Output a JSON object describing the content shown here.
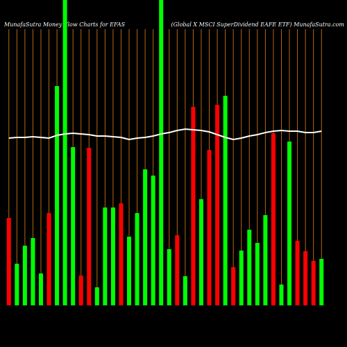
{
  "chart_data": {
    "type": "bar",
    "title": "MunafaSutra  Money Flow  Charts for EFAS",
    "subtitle": "(Global X  MSCI SuperDividend EAFE ETF) MunafaSutra.com",
    "categories": [
      null,
      null,
      null,
      null,
      null,
      null,
      null,
      null,
      null,
      null,
      null,
      null,
      null,
      null,
      null,
      null,
      null,
      null,
      null,
      null,
      null,
      null,
      null,
      null,
      null,
      null,
      null,
      null,
      null,
      null,
      null,
      null,
      null,
      null,
      null,
      null,
      null,
      null,
      null,
      null
    ],
    "values": [
      126,
      60,
      86,
      97,
      46,
      133,
      316,
      440,
      228,
      43,
      227,
      26,
      141,
      141,
      147,
      99,
      133,
      196,
      187,
      440,
      81,
      101,
      42,
      286,
      153,
      224,
      289,
      302,
      55,
      79,
      109,
      90,
      130,
      248,
      30,
      236,
      93,
      78,
      64,
      67
    ],
    "colors": [
      "#ff0000",
      "#00ff00",
      "#00ff00",
      "#00ff00",
      "#00ff00",
      "#ff0000",
      "#00ff00",
      "#00ff00",
      "#00ff00",
      "#ff0000",
      "#ff0000",
      "#00ff00",
      "#00ff00",
      "#00ff00",
      "#ff0000",
      "#00ff00",
      "#00ff00",
      "#00ff00",
      "#00ff00",
      "#00ff00",
      "#00ff00",
      "#ff0000",
      "#00ff00",
      "#ff0000",
      "#00ff00",
      "#ff0000",
      "#ff0000",
      "#00ff00",
      "#ff0000",
      "#00ff00",
      "#00ff00",
      "#00ff00",
      "#00ff00",
      "#ff0000",
      "#00ff00",
      "#00ff00",
      "#ff0000",
      "#ff0000",
      "#ff0000",
      "#00ff00"
    ],
    "line": {
      "color": "#ffffff",
      "values": [
        241,
        242,
        242,
        243,
        242,
        241,
        245,
        247,
        248,
        247,
        246,
        244,
        244,
        243,
        242,
        239,
        241,
        242,
        244,
        247,
        249,
        252,
        254,
        253,
        252,
        250,
        246,
        242,
        239,
        241,
        244,
        246,
        249,
        251,
        252,
        251,
        251,
        249,
        249,
        251
      ]
    },
    "ylim": [
      0,
      440
    ]
  }
}
